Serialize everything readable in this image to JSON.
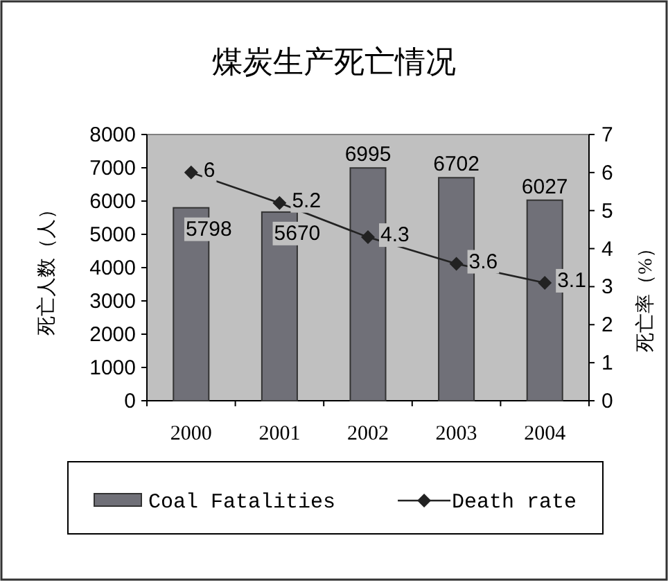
{
  "chart_data": {
    "type": "bar",
    "title": "煤炭生产死亡情况",
    "ylabel": "死亡人数（人）",
    "y2label": "死亡率（%）",
    "categories": [
      "2000",
      "2001",
      "2002",
      "2003",
      "2004"
    ],
    "series": [
      {
        "name": "Coal Fatalities",
        "type": "bar",
        "color": "#707078",
        "values": [
          5798,
          5670,
          6995,
          6702,
          6027
        ]
      },
      {
        "name": "Death rate",
        "type": "line",
        "axis": "y2",
        "color": "#222222",
        "marker": "diamond",
        "values": [
          6,
          5.2,
          4.3,
          3.6,
          3.1
        ]
      }
    ],
    "ylim": [
      0,
      8000
    ],
    "yticks": [
      0,
      1000,
      2000,
      3000,
      4000,
      5000,
      6000,
      7000,
      8000
    ],
    "y2lim": [
      0,
      7
    ],
    "y2ticks": [
      0,
      1,
      2,
      3,
      4,
      5,
      6,
      7
    ],
    "data_labels": true,
    "legend": "bottom",
    "grid": false
  }
}
